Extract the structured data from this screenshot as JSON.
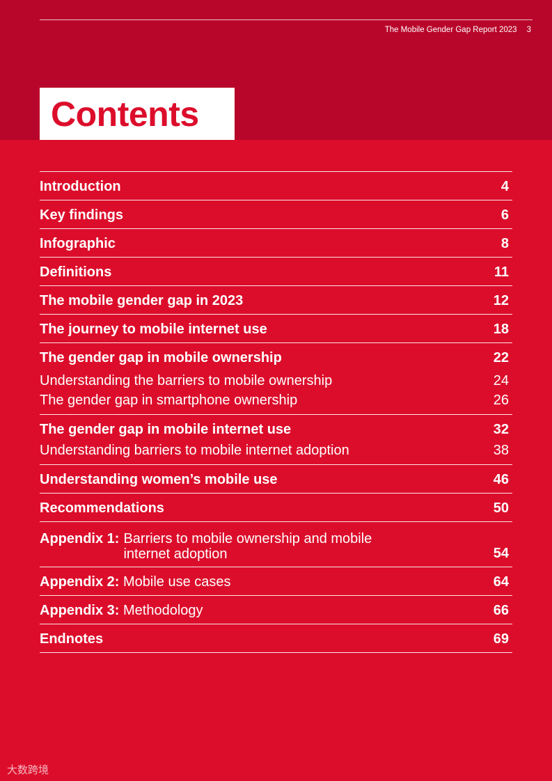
{
  "header": {
    "report_title": "The Mobile Gender Gap Report 2023",
    "page_number": "3"
  },
  "title": "Contents",
  "toc": [
    {
      "label": "Introduction",
      "page": "4"
    },
    {
      "label": "Key findings",
      "page": "6"
    },
    {
      "label": "Infographic",
      "page": "8"
    },
    {
      "label": "Definitions",
      "page": "11"
    },
    {
      "label": "The mobile gender gap in 2023",
      "page": "12"
    },
    {
      "label": "The journey to mobile internet use",
      "page": "18"
    },
    {
      "label": "The gender gap in mobile ownership",
      "page": "22",
      "sub": [
        {
          "label": "Understanding the barriers to mobile ownership",
          "page": "24"
        },
        {
          "label": "The gender gap in smartphone ownership",
          "page": "26"
        }
      ]
    },
    {
      "label": "The gender gap in mobile internet use",
      "page": "32",
      "sub": [
        {
          "label": "Understanding barriers to mobile internet adoption",
          "page": "38"
        }
      ]
    },
    {
      "label": "Understanding women’s mobile use",
      "page": "46"
    },
    {
      "label": "Recommendations",
      "page": "50"
    }
  ],
  "appendices": [
    {
      "prefix": "Appendix 1:",
      "line1": "Barriers to mobile ownership and mobile",
      "line2": "internet adoption",
      "page": "54"
    },
    {
      "prefix": "Appendix 2:",
      "line1": "Mobile use cases",
      "page": "64"
    },
    {
      "prefix": "Appendix 3:",
      "line1": "Methodology",
      "page": "66"
    }
  ],
  "endnotes": {
    "label": "Endnotes",
    "page": "69"
  },
  "watermark": "大数跨境"
}
